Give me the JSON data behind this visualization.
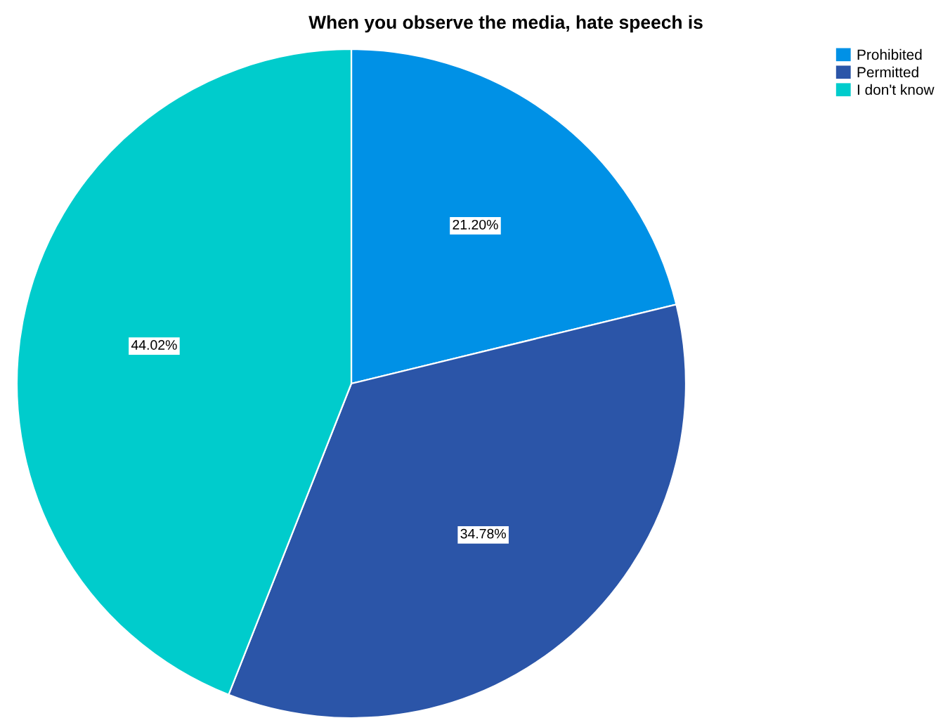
{
  "chart_data": {
    "type": "pie",
    "title": "When you observe the media, hate speech is",
    "categories": [
      "Prohibited",
      "Permitted",
      "I don't know"
    ],
    "values": [
      21.2,
      34.78,
      44.02
    ],
    "value_labels": [
      "21.20%",
      "34.78%",
      "44.02%"
    ],
    "colors": [
      "#0091e6",
      "#2b55a8",
      "#00cccc"
    ],
    "legend": "top right"
  }
}
